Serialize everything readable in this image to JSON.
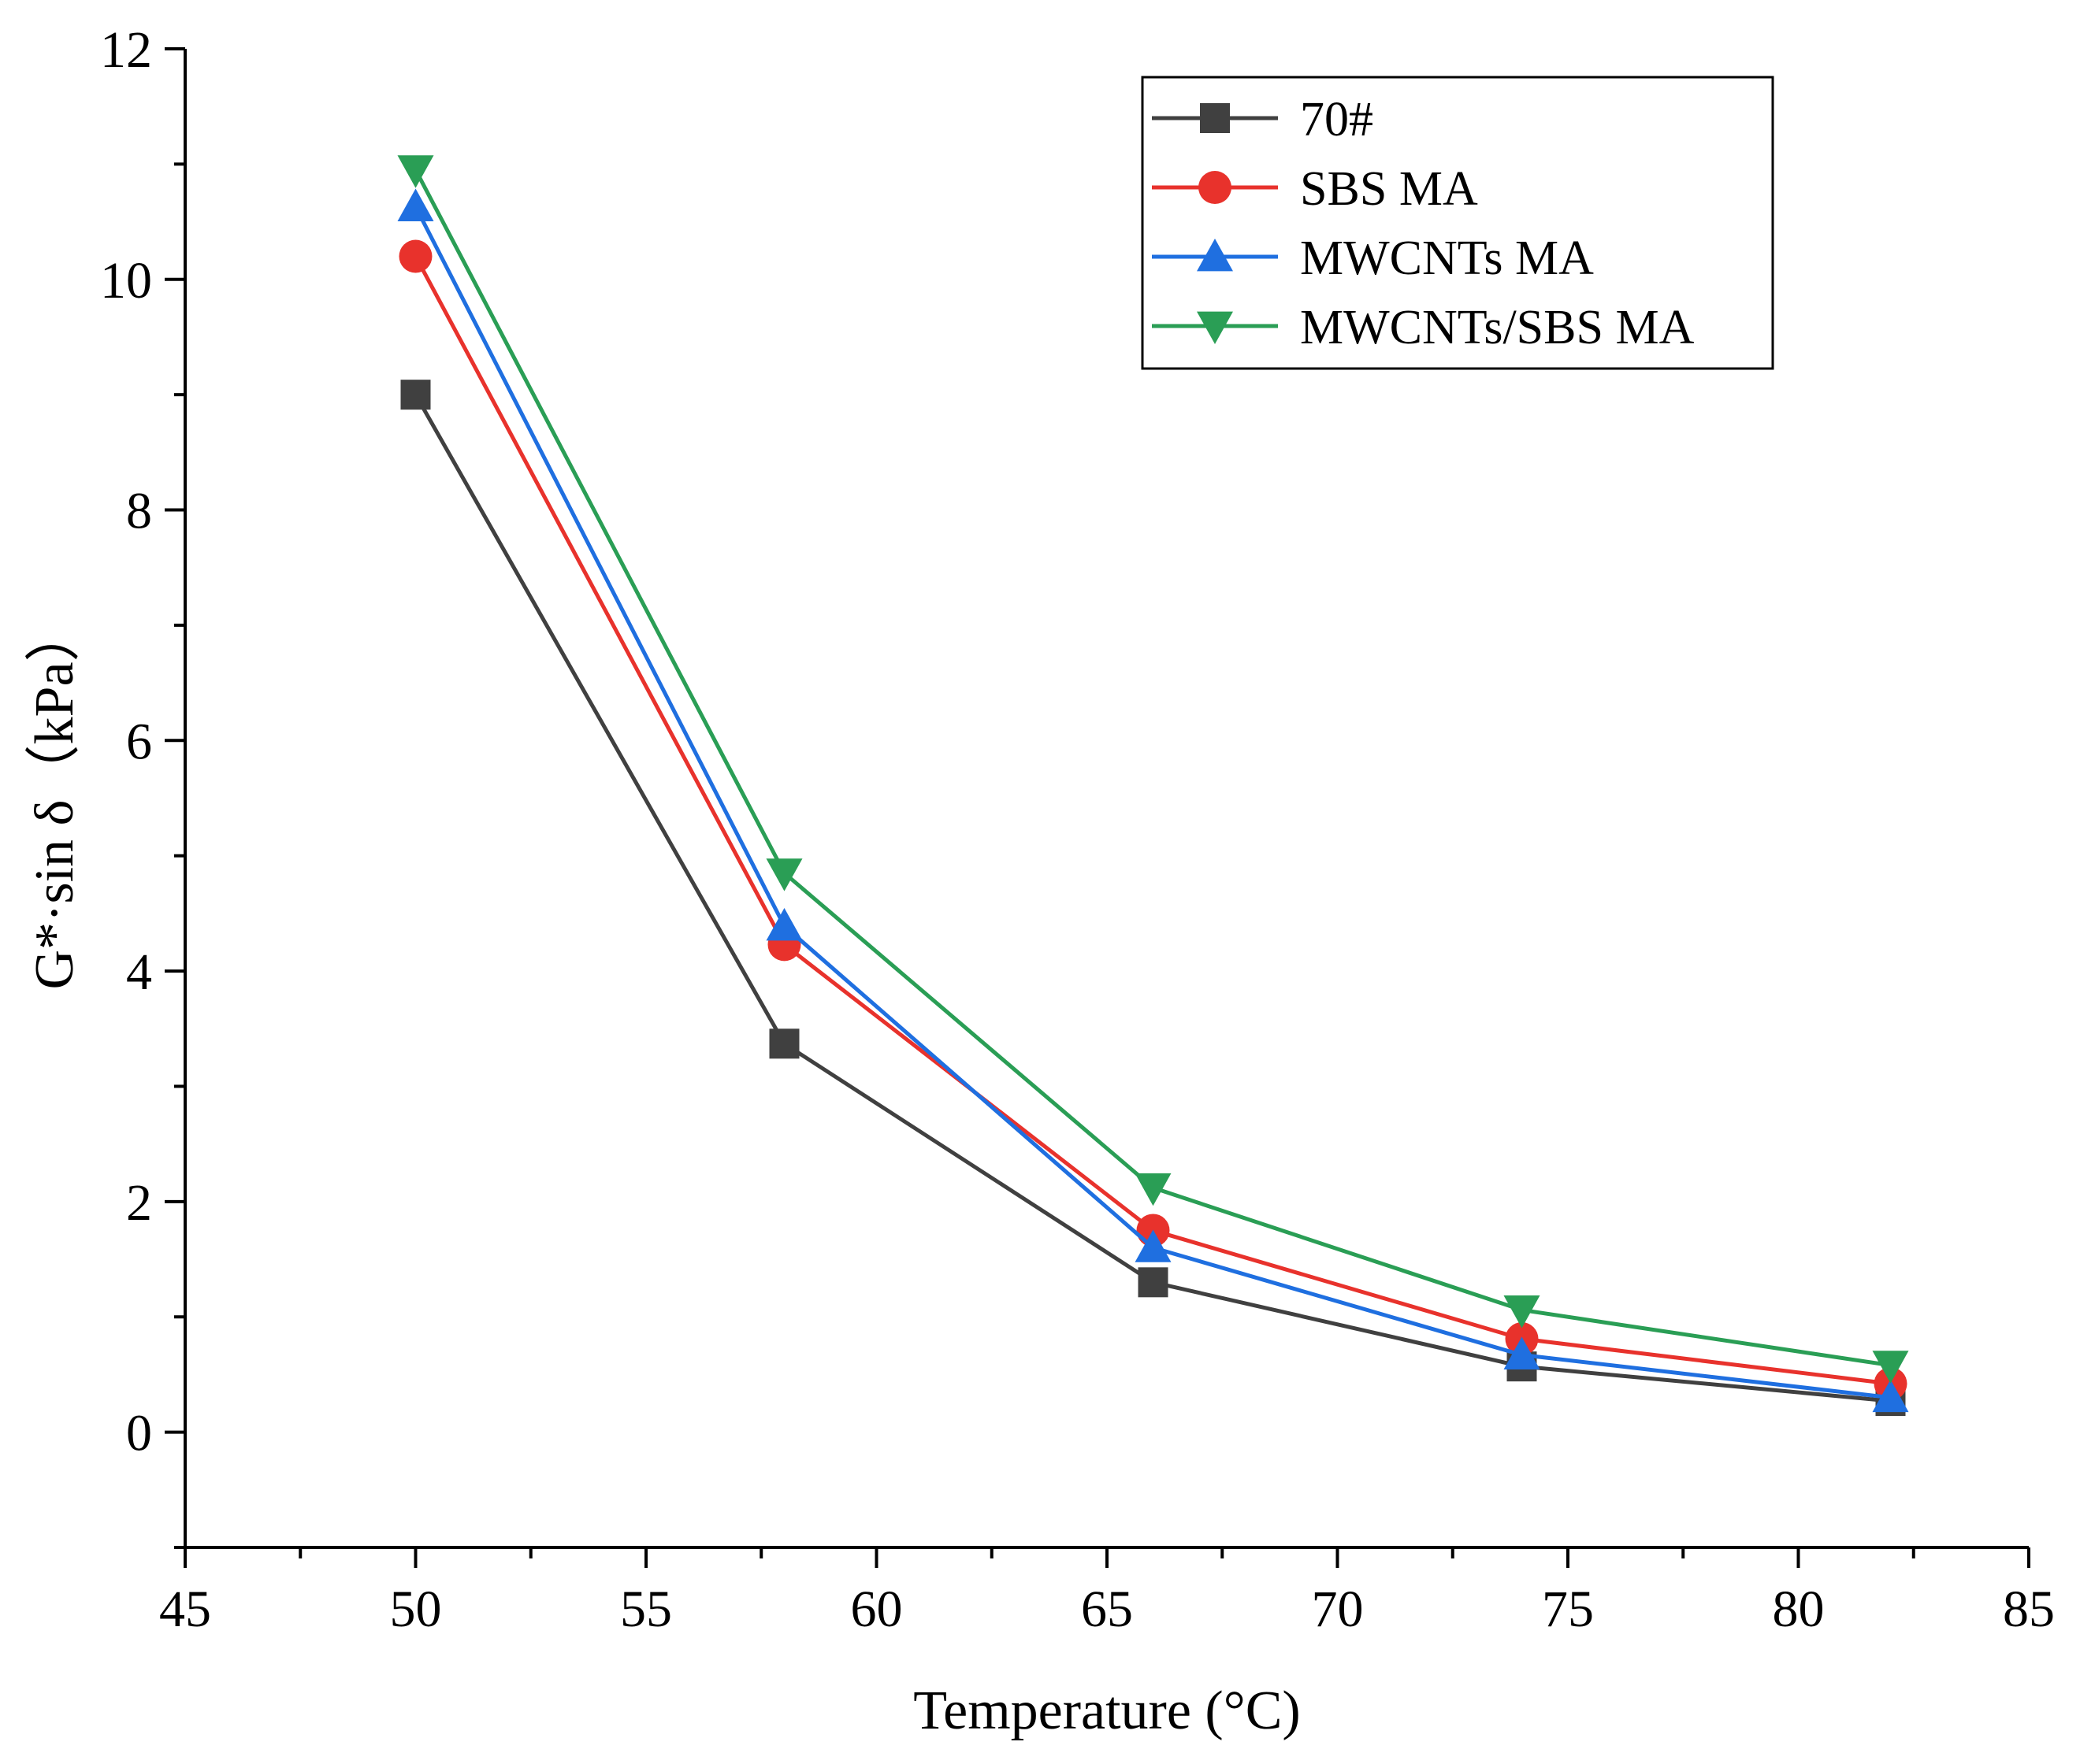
{
  "chart_data": {
    "type": "line",
    "title": "",
    "xlabel": "Temperature (°C)",
    "ylabel": "G*·sin δ（kPa）",
    "xlim": [
      45,
      85
    ],
    "ylim": [
      -1,
      12
    ],
    "xticks": [
      45,
      50,
      55,
      60,
      65,
      70,
      75,
      80,
      85
    ],
    "xtick_labels": [
      "45",
      "50",
      "55",
      "60",
      "65",
      "70",
      "75",
      "80",
      "85"
    ],
    "yticks": [
      0,
      2,
      4,
      6,
      8,
      10,
      12
    ],
    "ytick_labels": [
      "0",
      "2",
      "4",
      "6",
      "8",
      "10",
      "12"
    ],
    "grid": false,
    "legend_position": "top-right",
    "x": [
      50,
      58,
      66,
      74,
      82
    ],
    "series": [
      {
        "name": "70#",
        "color": "#404040",
        "marker": "square",
        "values": [
          9.0,
          3.37,
          1.3,
          0.57,
          0.27
        ]
      },
      {
        "name": "SBS MA",
        "color": "#e8322c",
        "marker": "circle",
        "values": [
          10.2,
          4.23,
          1.75,
          0.81,
          0.42
        ]
      },
      {
        "name": "MWCNTs MA",
        "color": "#1f6fe0",
        "marker": "triangle-up",
        "values": [
          10.63,
          4.39,
          1.6,
          0.67,
          0.3
        ]
      },
      {
        "name": "MWCNTs/SBS MA",
        "color": "#2a9e55",
        "marker": "triangle-down",
        "values": [
          10.95,
          4.85,
          2.12,
          1.06,
          0.58
        ]
      }
    ]
  }
}
